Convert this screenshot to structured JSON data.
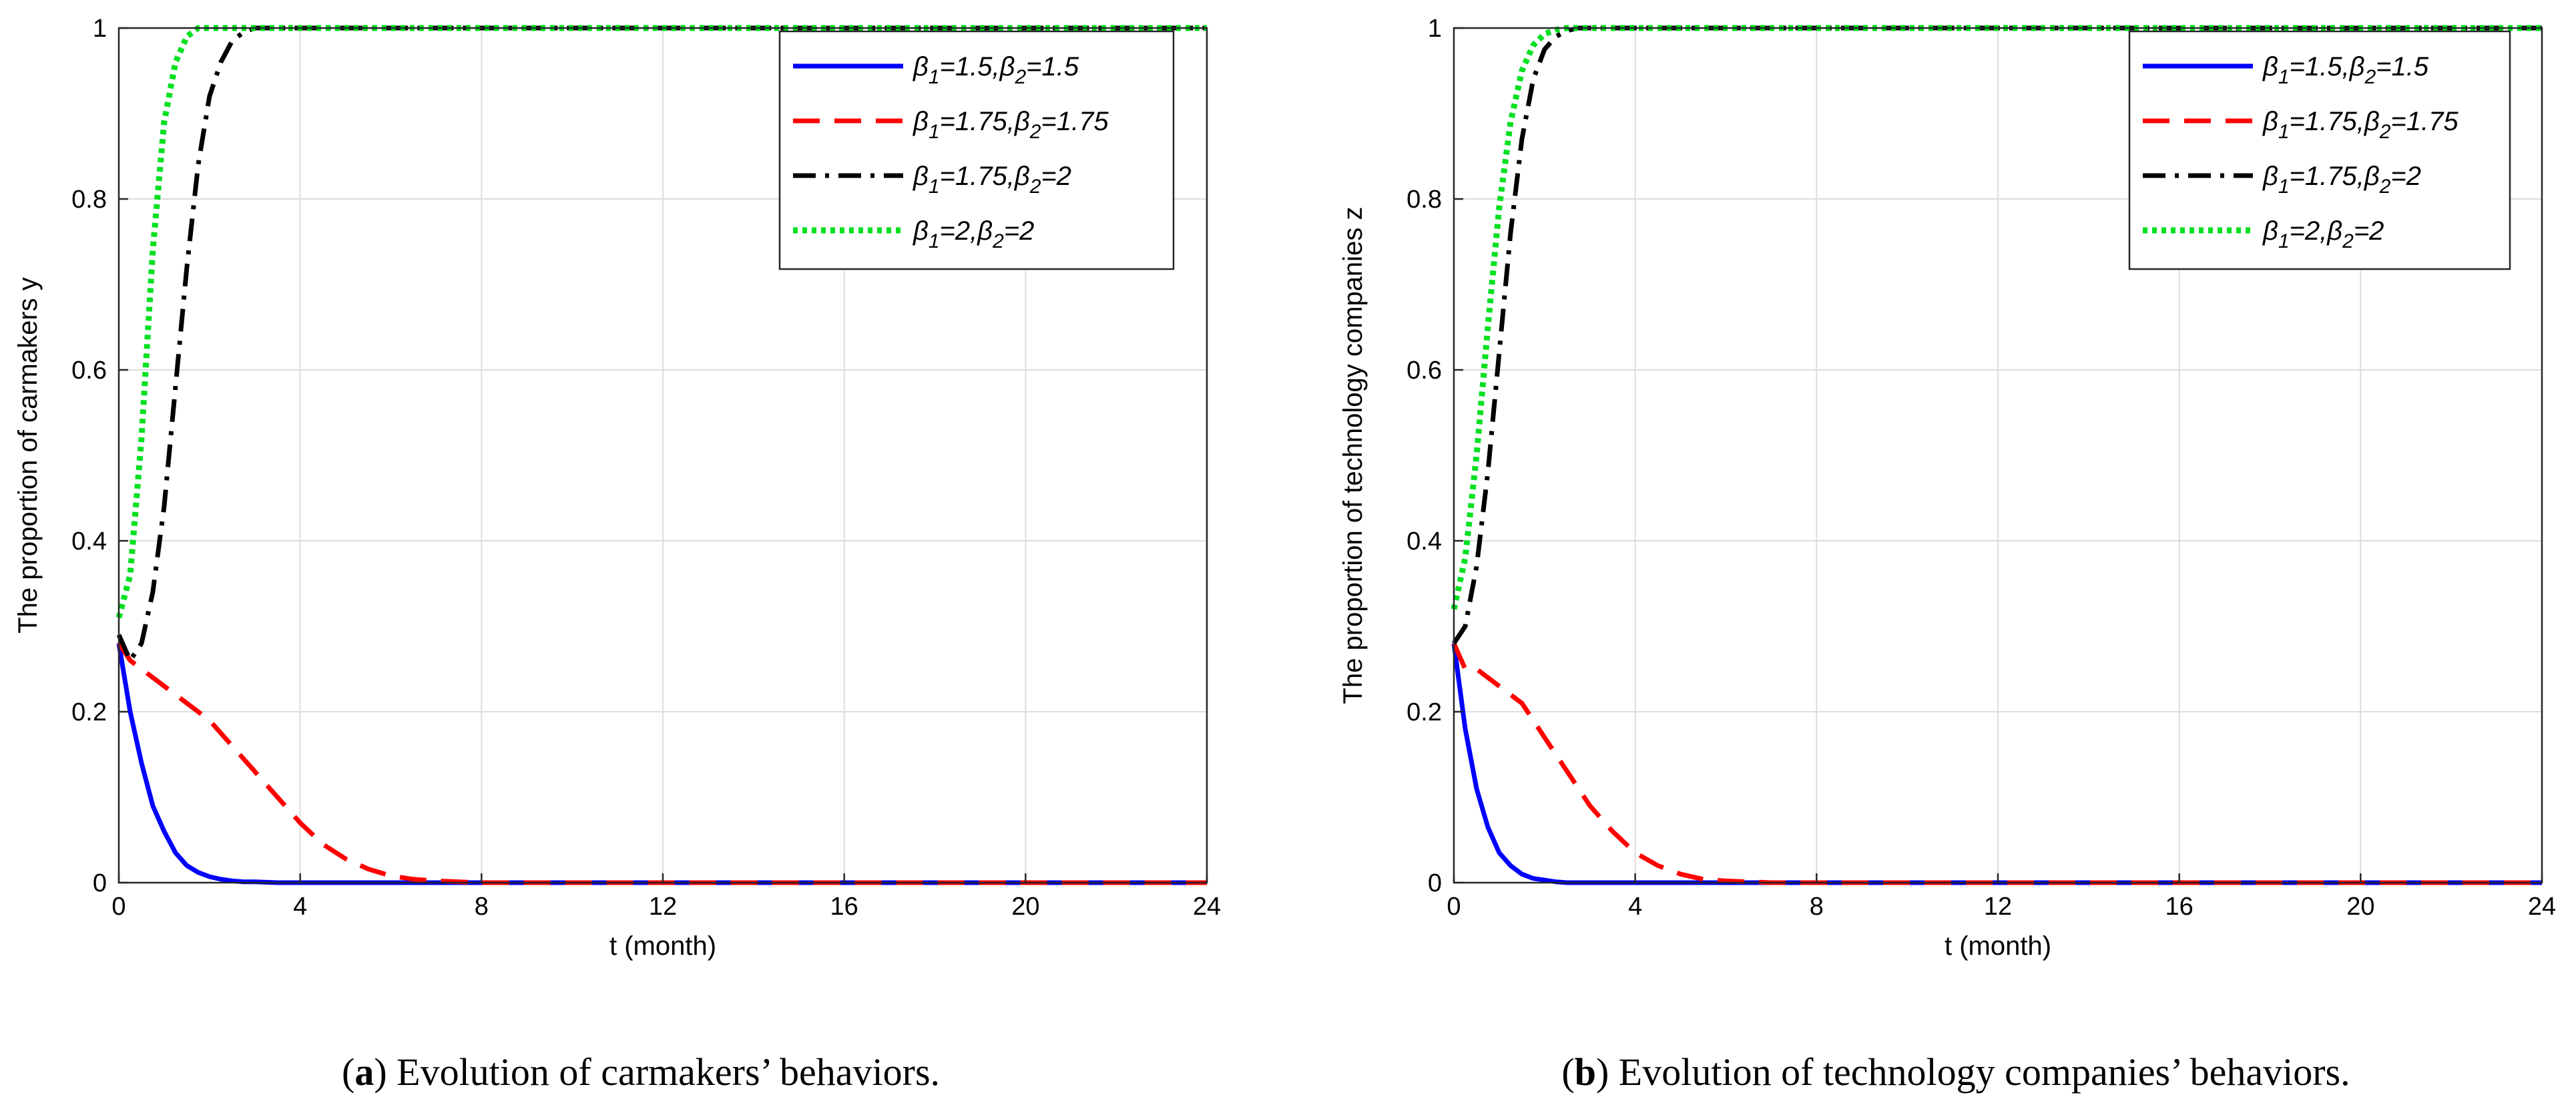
{
  "figure": {
    "captions": [
      {
        "letter": "a",
        "text": " Evolution of carmakers’ behaviors."
      },
      {
        "letter": "b",
        "text": " Evolution of technology companies’ behaviors."
      }
    ]
  },
  "legend_labels": [
    {
      "sym1": "β",
      "sub1": "1",
      "mid": "=1.5,",
      "sym2": "β",
      "sub2": "2",
      "end": "=1.5"
    },
    {
      "sym1": "β",
      "sub1": "1",
      "mid": "=1.75,",
      "sym2": "β",
      "sub2": "2",
      "end": "=1.75"
    },
    {
      "sym1": "β",
      "sub1": "1",
      "mid": "=1.75,",
      "sym2": "β",
      "sub2": "2",
      "end": "=2"
    },
    {
      "sym1": "β",
      "sub1": "1",
      "mid": "=2,",
      "sym2": "β",
      "sub2": "2",
      "end": "=2"
    }
  ],
  "chart_data": [
    {
      "type": "line",
      "title": "",
      "xlabel": "t (month)",
      "ylabel": "The proportion of carmakers y",
      "xlim": [
        0,
        24
      ],
      "ylim": [
        0,
        1
      ],
      "xticks": [
        0,
        4,
        8,
        12,
        16,
        20,
        24
      ],
      "yticks": [
        0,
        0.2,
        0.4,
        0.6,
        0.8,
        1
      ],
      "ytick_labels": [
        "0",
        "0.2",
        "0.4",
        "0.6",
        "0.8",
        "1"
      ],
      "grid": true,
      "legend_position": "top-right",
      "x": [
        0,
        0.25,
        0.5,
        0.75,
        1,
        1.25,
        1.5,
        1.75,
        2,
        2.25,
        2.5,
        2.75,
        3,
        3.5,
        4,
        4.5,
        5,
        5.5,
        6,
        6.5,
        7,
        8,
        10,
        12,
        16,
        20,
        24
      ],
      "series": [
        {
          "name": "β1=1.5,β2=1.5",
          "color": "#0000ff",
          "style": "solid",
          "values": [
            0.28,
            0.2,
            0.14,
            0.09,
            0.06,
            0.035,
            0.02,
            0.012,
            0.007,
            0.004,
            0.002,
            0.001,
            0.001,
            0,
            0,
            0,
            0,
            0,
            0,
            0,
            0,
            0,
            0,
            0,
            0,
            0,
            0
          ]
        },
        {
          "name": "β1=1.75,β2=1.75",
          "color": "#ff0000",
          "style": "dashed",
          "values": [
            0.28,
            0.26,
            0.25,
            0.24,
            0.23,
            0.22,
            0.21,
            0.2,
            0.19,
            0.175,
            0.16,
            0.145,
            0.13,
            0.1,
            0.07,
            0.045,
            0.028,
            0.016,
            0.008,
            0.004,
            0.002,
            0,
            0,
            0,
            0,
            0,
            0
          ]
        },
        {
          "name": "β1=1.75,β2=2",
          "color": "#000000",
          "style": "dashdot",
          "values": [
            0.29,
            0.26,
            0.28,
            0.34,
            0.44,
            0.58,
            0.72,
            0.84,
            0.92,
            0.96,
            0.985,
            0.995,
            1,
            1,
            1,
            1,
            1,
            1,
            1,
            1,
            1,
            1,
            1,
            1,
            1,
            1,
            1
          ]
        },
        {
          "name": "β1=2,β2=2",
          "color": "#00e020",
          "style": "dotted",
          "values": [
            0.31,
            0.36,
            0.52,
            0.74,
            0.89,
            0.96,
            0.99,
            1,
            1,
            1,
            1,
            1,
            1,
            1,
            1,
            1,
            1,
            1,
            1,
            1,
            1,
            1,
            1,
            1,
            1,
            1,
            1
          ]
        }
      ]
    },
    {
      "type": "line",
      "title": "",
      "xlabel": "t (month)",
      "ylabel": "The proportion of technology companies z",
      "xlim": [
        0,
        24
      ],
      "ylim": [
        0,
        1
      ],
      "xticks": [
        0,
        4,
        8,
        12,
        16,
        20,
        24
      ],
      "yticks": [
        0,
        0.2,
        0.4,
        0.6,
        0.8,
        1
      ],
      "ytick_labels": [
        "0",
        "0.2",
        "0.4",
        "0.6",
        "0.8",
        "1"
      ],
      "grid": true,
      "legend_position": "top-right",
      "x": [
        0,
        0.25,
        0.5,
        0.75,
        1,
        1.25,
        1.5,
        1.75,
        2,
        2.25,
        2.5,
        2.75,
        3,
        3.5,
        4,
        4.5,
        5,
        5.5,
        6,
        6.5,
        7,
        8,
        10,
        12,
        16,
        20,
        24
      ],
      "series": [
        {
          "name": "β1=1.5,β2=1.5",
          "color": "#0000ff",
          "style": "solid",
          "values": [
            0.28,
            0.18,
            0.11,
            0.065,
            0.035,
            0.02,
            0.01,
            0.005,
            0.003,
            0.001,
            0,
            0,
            0,
            0,
            0,
            0,
            0,
            0,
            0,
            0,
            0,
            0,
            0,
            0,
            0,
            0,
            0
          ]
        },
        {
          "name": "β1=1.75,β2=1.75",
          "color": "#ff0000",
          "style": "dashed",
          "values": [
            0.28,
            0.25,
            0.25,
            0.24,
            0.23,
            0.22,
            0.21,
            0.19,
            0.17,
            0.15,
            0.13,
            0.11,
            0.09,
            0.06,
            0.035,
            0.02,
            0.01,
            0.004,
            0.002,
            0.001,
            0,
            0,
            0,
            0,
            0,
            0,
            0
          ]
        },
        {
          "name": "β1=1.75,β2=2",
          "color": "#000000",
          "style": "dashdot",
          "values": [
            0.28,
            0.3,
            0.37,
            0.48,
            0.62,
            0.76,
            0.87,
            0.94,
            0.975,
            0.99,
            0.997,
            1,
            1,
            1,
            1,
            1,
            1,
            1,
            1,
            1,
            1,
            1,
            1,
            1,
            1,
            1,
            1
          ]
        },
        {
          "name": "β1=2,β2=2",
          "color": "#00e020",
          "style": "dotted",
          "values": [
            0.32,
            0.38,
            0.5,
            0.65,
            0.79,
            0.89,
            0.95,
            0.98,
            0.993,
            0.998,
            1,
            1,
            1,
            1,
            1,
            1,
            1,
            1,
            1,
            1,
            1,
            1,
            1,
            1,
            1,
            1,
            1
          ]
        }
      ]
    }
  ]
}
